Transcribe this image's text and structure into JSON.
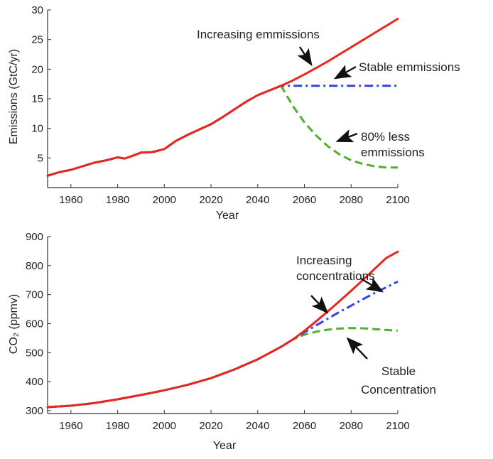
{
  "chart_data": [
    {
      "type": "line",
      "xlabel": "Year",
      "ylabel": "Emissions (GtC/yr)",
      "xlim": [
        1950,
        2100
      ],
      "ylim": [
        0,
        30
      ],
      "xticks": [
        "1960",
        "1980",
        "2000",
        "2020",
        "2040",
        "2060",
        "2080",
        "2100"
      ],
      "yticks": [
        "5",
        "10",
        "15",
        "20",
        "25",
        "30"
      ],
      "grid": false,
      "series": [
        {
          "key": "increasing",
          "color": "#e8261c",
          "dash": "solid",
          "x": [
            1950,
            1955,
            1960,
            1965,
            1970,
            1975,
            1980,
            1983,
            1986,
            1990,
            1995,
            2000,
            2005,
            2010,
            2015,
            2020,
            2025,
            2030,
            2035,
            2040,
            2045,
            2050,
            2055,
            2060,
            2065,
            2070,
            2075,
            2080,
            2085,
            2090,
            2095,
            2100
          ],
          "y": [
            2.0,
            2.6,
            3.0,
            3.6,
            4.2,
            4.6,
            5.1,
            4.9,
            5.3,
            5.9,
            6.0,
            6.5,
            7.9,
            8.9,
            9.8,
            10.7,
            11.9,
            13.2,
            14.5,
            15.6,
            16.4,
            17.2,
            18.1,
            19.1,
            20.2,
            21.3,
            22.5,
            23.7,
            24.9,
            26.1,
            27.3,
            28.5
          ]
        },
        {
          "key": "stable",
          "color": "#2f43ea",
          "dash": "dashdot",
          "x": [
            1950,
            1955,
            1960,
            1965,
            1970,
            1975,
            1980,
            1983,
            1986,
            1990,
            1995,
            2000,
            2005,
            2010,
            2015,
            2020,
            2025,
            2030,
            2035,
            2040,
            2045,
            2050,
            2060,
            2070,
            2080,
            2090,
            2100
          ],
          "y": [
            2.0,
            2.6,
            3.0,
            3.6,
            4.2,
            4.6,
            5.1,
            4.9,
            5.3,
            5.9,
            6.0,
            6.5,
            7.9,
            8.9,
            9.8,
            10.7,
            11.9,
            13.2,
            14.5,
            15.6,
            16.4,
            17.2,
            17.2,
            17.2,
            17.2,
            17.2,
            17.2
          ]
        },
        {
          "key": "less80",
          "color": "#4caf2e",
          "dash": "dashed",
          "x": [
            1950,
            1955,
            1960,
            1965,
            1970,
            1975,
            1980,
            1983,
            1986,
            1990,
            1995,
            2000,
            2005,
            2010,
            2015,
            2020,
            2025,
            2030,
            2035,
            2040,
            2045,
            2050,
            2055,
            2060,
            2065,
            2070,
            2075,
            2080,
            2085,
            2090,
            2095,
            2100
          ],
          "y": [
            2.0,
            2.6,
            3.0,
            3.6,
            4.2,
            4.6,
            5.1,
            4.9,
            5.3,
            5.9,
            6.0,
            6.5,
            7.9,
            8.9,
            9.8,
            10.7,
            11.9,
            13.2,
            14.5,
            15.6,
            16.4,
            17.2,
            13.8,
            11.0,
            8.8,
            7.0,
            5.6,
            4.6,
            4.0,
            3.6,
            3.4,
            3.4
          ]
        }
      ],
      "annotations": [
        {
          "key": "increasing",
          "text": "Increasing emmissions"
        },
        {
          "key": "stable",
          "text": "Stable emmissions"
        },
        {
          "key": "less80",
          "lines": [
            "80% less",
            "emmissions"
          ]
        }
      ]
    },
    {
      "type": "line",
      "xlabel": "Year",
      "ylabel": "CO₂ (ppmv)",
      "xlim": [
        1950,
        2100
      ],
      "ylim": [
        290,
        900
      ],
      "xticks": [
        "1960",
        "1980",
        "2000",
        "2020",
        "2040",
        "2060",
        "2080",
        "2100"
      ],
      "yticks": [
        "300",
        "400",
        "500",
        "600",
        "700",
        "800",
        "900"
      ],
      "grid": false,
      "series": [
        {
          "key": "increasing",
          "color": "#e8261c",
          "dash": "solid",
          "x": [
            1950,
            1960,
            1970,
            1980,
            1990,
            2000,
            2010,
            2020,
            2030,
            2040,
            2050,
            2055,
            2060,
            2065,
            2070,
            2075,
            2080,
            2085,
            2090,
            2095,
            2100
          ],
          "y": [
            312,
            317,
            326,
            339,
            354,
            370,
            389,
            412,
            442,
            477,
            520,
            545,
            575,
            608,
            642,
            677,
            713,
            750,
            788,
            826,
            848
          ]
        },
        {
          "key": "stable",
          "color": "#2f43ea",
          "dash": "dashdot",
          "x": [
            1950,
            1960,
            1970,
            1980,
            1990,
            2000,
            2010,
            2020,
            2030,
            2040,
            2050,
            2055,
            2060,
            2065,
            2070,
            2075,
            2080,
            2085,
            2090,
            2095,
            2100
          ],
          "y": [
            312,
            317,
            326,
            339,
            354,
            370,
            389,
            412,
            442,
            477,
            520,
            545,
            570,
            594,
            617,
            640,
            662,
            684,
            705,
            725,
            745
          ]
        },
        {
          "key": "stable_conc",
          "color": "#4caf2e",
          "dash": "dashed",
          "x": [
            1950,
            1960,
            1970,
            1980,
            1990,
            2000,
            2010,
            2020,
            2030,
            2040,
            2050,
            2055,
            2060,
            2065,
            2070,
            2075,
            2080,
            2085,
            2090,
            2095,
            2100
          ],
          "y": [
            312,
            317,
            326,
            339,
            354,
            370,
            389,
            412,
            442,
            477,
            520,
            545,
            562,
            572,
            579,
            583,
            585,
            584,
            581,
            578,
            576
          ]
        }
      ],
      "annotations": [
        {
          "key": "increasing",
          "lines": [
            "Increasing",
            "concentrations"
          ]
        },
        {
          "key": "stable_conc",
          "lines": [
            "Stable",
            "Concentration"
          ]
        }
      ]
    }
  ]
}
